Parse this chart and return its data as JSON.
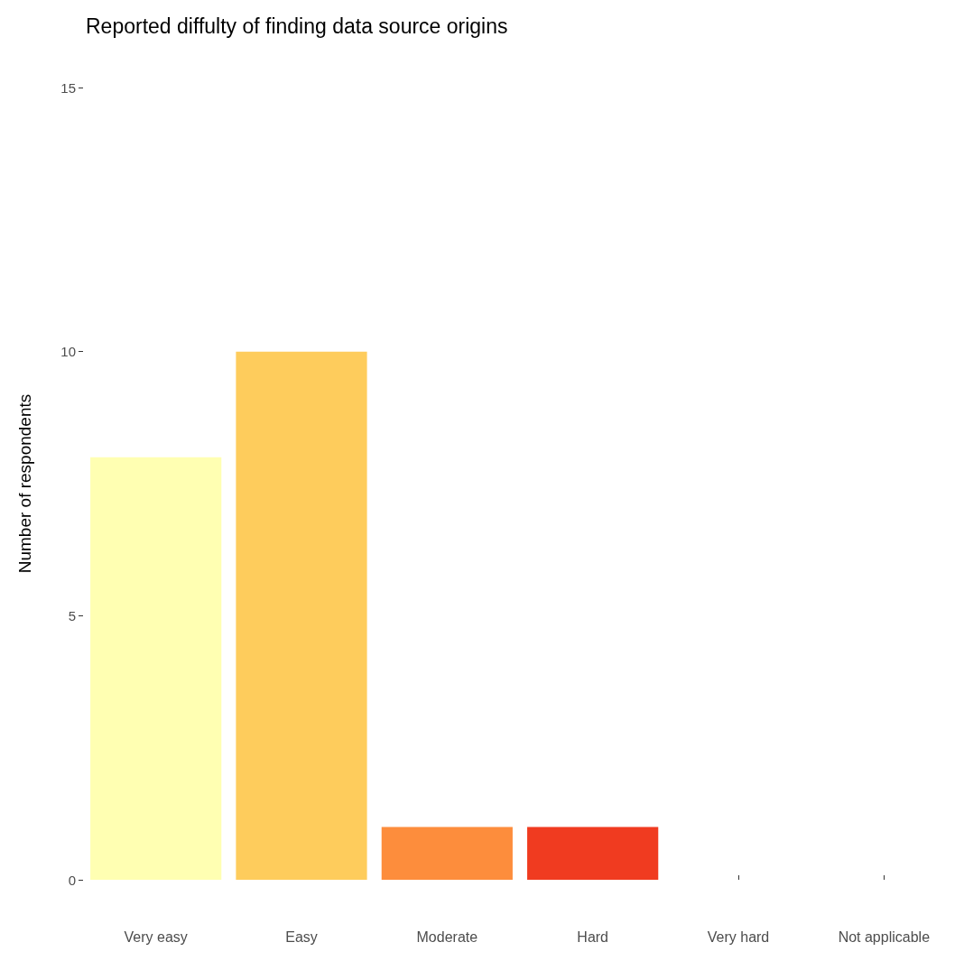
{
  "chart_data": {
    "type": "bar",
    "title": "Reported diffulty of finding data source origins",
    "ylabel": "Number of respondents",
    "categories": [
      "Very easy",
      "Easy",
      "Moderate",
      "Hard",
      "Very hard",
      "Not applicable"
    ],
    "values": [
      8,
      10,
      1,
      1,
      0,
      0
    ],
    "colors": [
      "#ffffb2",
      "#fecc5c",
      "#fd8d3c",
      "#f03b20",
      "#bd0026",
      "#bd0026"
    ],
    "ylim": [
      0,
      15
    ],
    "yticks": [
      0,
      5,
      10,
      15
    ],
    "grid": false
  }
}
